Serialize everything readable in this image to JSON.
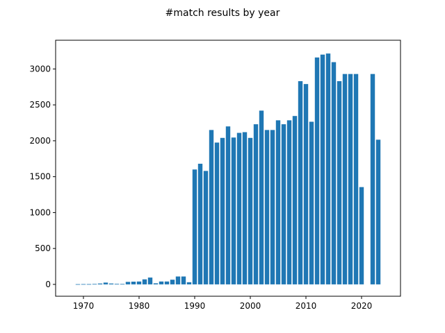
{
  "chart_data": {
    "type": "bar",
    "title": "#match results by year",
    "xlabel": "",
    "ylabel": "",
    "bar_color": "#1f77b4",
    "xlim": [
      1965,
      2027
    ],
    "ylim": [
      -165,
      3400
    ],
    "xticks": [
      1970,
      1980,
      1990,
      2000,
      2010,
      2020
    ],
    "yticks": [
      0,
      500,
      1000,
      1500,
      2000,
      2500,
      3000
    ],
    "grid": false,
    "x": [
      1969,
      1970,
      1971,
      1972,
      1973,
      1974,
      1975,
      1976,
      1977,
      1978,
      1979,
      1980,
      1981,
      1982,
      1983,
      1984,
      1985,
      1986,
      1987,
      1988,
      1989,
      1990,
      1991,
      1992,
      1993,
      1994,
      1995,
      1996,
      1997,
      1998,
      1999,
      2000,
      2001,
      2002,
      2003,
      2004,
      2005,
      2006,
      2007,
      2008,
      2009,
      2010,
      2011,
      2012,
      2013,
      2014,
      2015,
      2016,
      2017,
      2018,
      2019,
      2020,
      2022,
      2023
    ],
    "values": [
      3,
      4,
      4,
      6,
      12,
      25,
      12,
      8,
      6,
      35,
      38,
      40,
      70,
      95,
      15,
      40,
      40,
      65,
      110,
      110,
      30,
      1600,
      1680,
      1580,
      2150,
      1975,
      2040,
      2200,
      2045,
      2110,
      2120,
      2040,
      2230,
      2420,
      2150,
      2150,
      2285,
      2230,
      2285,
      2345,
      2830,
      2790,
      2265,
      3160,
      3200,
      3215,
      3095,
      2830,
      2930,
      2930,
      2930,
      1355,
      2930,
      2015
    ]
  }
}
